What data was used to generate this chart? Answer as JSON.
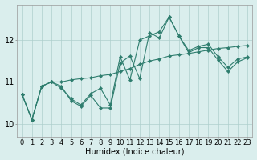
{
  "title": "",
  "xlabel": "Humidex (Indice chaleur)",
  "ylabel": "",
  "xlim": [
    -0.5,
    23.5
  ],
  "ylim": [
    9.7,
    12.85
  ],
  "yticks": [
    10,
    11,
    12
  ],
  "xticks": [
    0,
    1,
    2,
    3,
    4,
    5,
    6,
    7,
    8,
    9,
    10,
    11,
    12,
    13,
    14,
    15,
    16,
    17,
    18,
    19,
    20,
    21,
    22,
    23
  ],
  "background_color": "#daeeed",
  "grid_color": "#aecfcd",
  "line_color": "#2e7d6e",
  "series1": [
    10.7,
    10.1,
    10.9,
    11.0,
    10.85,
    10.6,
    10.45,
    10.72,
    10.85,
    10.45,
    11.6,
    11.05,
    12.0,
    12.1,
    12.2,
    12.55,
    12.1,
    11.75,
    11.85,
    11.9,
    11.6,
    11.35,
    11.55,
    11.6
  ],
  "series2": [
    10.7,
    10.1,
    10.9,
    11.0,
    10.9,
    10.55,
    10.42,
    10.68,
    10.38,
    10.38,
    11.45,
    11.62,
    11.08,
    12.18,
    12.05,
    12.55,
    12.1,
    11.7,
    11.82,
    11.82,
    11.52,
    11.25,
    11.48,
    11.58
  ],
  "series3": [
    10.7,
    10.1,
    10.9,
    11.0,
    11.0,
    11.05,
    11.08,
    11.1,
    11.15,
    11.18,
    11.25,
    11.32,
    11.42,
    11.5,
    11.55,
    11.62,
    11.65,
    11.68,
    11.72,
    11.76,
    11.8,
    11.82,
    11.85,
    11.87
  ],
  "tick_fontsize": 6,
  "xlabel_fontsize": 7
}
